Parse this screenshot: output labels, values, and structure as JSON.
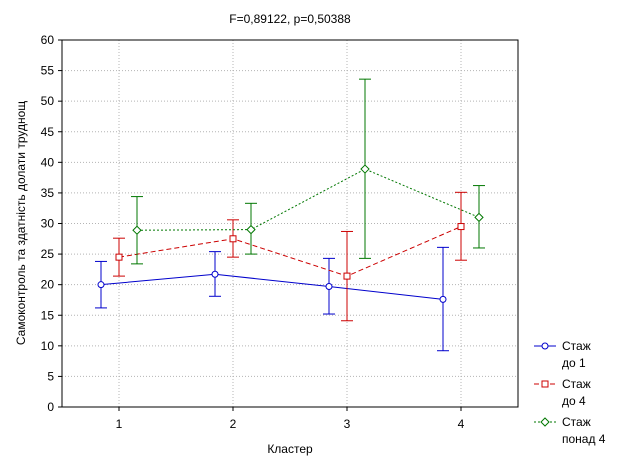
{
  "chart_data": {
    "type": "line",
    "title": "F=0,89122, p=0,50388",
    "xlabel": "Кластер",
    "ylabel": "Самоконтроль та здатність долати труднощ",
    "categories": [
      "1",
      "2",
      "3",
      "4"
    ],
    "ylim": [
      0,
      60
    ],
    "yticks": [
      "0",
      "5",
      "10",
      "15",
      "20",
      "25",
      "30",
      "35",
      "40",
      "45",
      "50",
      "55",
      "60"
    ],
    "grid": true,
    "legend_position": "bottom-right",
    "series": [
      {
        "name_lines": [
          "Стаж",
          "до 1"
        ],
        "color": "#0000cc",
        "line_style": "solid",
        "marker": "circle",
        "values": [
          20.0,
          21.7,
          19.7,
          17.6
        ],
        "lower": [
          16.2,
          18.1,
          15.2,
          9.2
        ],
        "upper": [
          23.8,
          25.4,
          24.3,
          26.1
        ]
      },
      {
        "name_lines": [
          "Стаж",
          "до 4"
        ],
        "color": "#cc0000",
        "line_style": "dashed",
        "marker": "square",
        "values": [
          24.5,
          27.5,
          21.4,
          29.5
        ],
        "lower": [
          21.4,
          24.5,
          14.1,
          24.0
        ],
        "upper": [
          27.6,
          30.6,
          28.7,
          35.1
        ]
      },
      {
        "name_lines": [
          "Стаж",
          "понад 4"
        ],
        "color": "#007700",
        "line_style": "dotted",
        "marker": "diamond",
        "values": [
          28.9,
          29.0,
          38.9,
          31.0
        ],
        "lower": [
          23.4,
          25.0,
          24.3,
          26.0
        ],
        "upper": [
          34.4,
          33.3,
          53.6,
          36.2
        ]
      }
    ]
  }
}
